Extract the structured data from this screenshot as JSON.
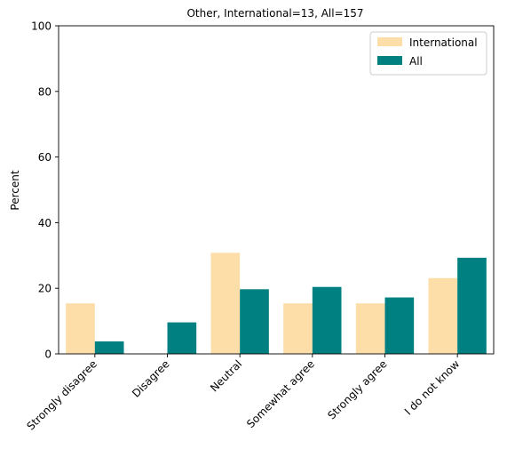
{
  "chart_data": {
    "type": "bar",
    "title": "Other, International=13, All=157",
    "xlabel": "",
    "ylabel": "Percent",
    "ylim": [
      0,
      100
    ],
    "yticks": [
      "0",
      "20",
      "40",
      "60",
      "80",
      "100"
    ],
    "categories": [
      "Strongly disagree",
      "Disagree",
      "Neutral",
      "Somewhat agree",
      "Strongly agree",
      "I do not know"
    ],
    "series": [
      {
        "name": "International",
        "color": "#FDDDA8",
        "values": [
          15.4,
          0,
          30.8,
          15.4,
          15.4,
          23.1
        ]
      },
      {
        "name": "All",
        "color": "#008080",
        "values": [
          3.8,
          9.6,
          19.7,
          20.4,
          17.2,
          29.3
        ]
      }
    ],
    "legend_position": "top-right",
    "grid": false
  }
}
